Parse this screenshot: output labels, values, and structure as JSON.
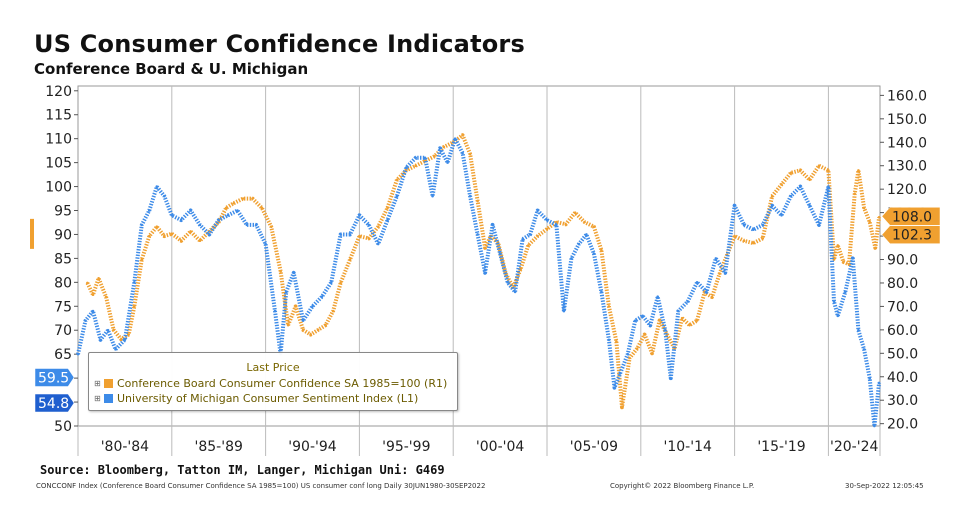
{
  "header": {
    "title": "US Consumer Confidence Indicators",
    "subtitle": "Conference Board & U. Michigan"
  },
  "legend": {
    "title": "Last Price",
    "entries": [
      {
        "label": "Conference Board Consumer Confidence SA 1985=100  (R1)",
        "color": "#f0a030"
      },
      {
        "label": "University of Michigan Consumer Sentiment Index  (L1)",
        "color": "#3d8be8"
      }
    ]
  },
  "footer": {
    "source": "Source: Bloomberg, Tatton IM, Langer, Michigan Uni: G469",
    "left": "CONCCONF Index (Conference Board Consumer Confidence SA 1985=100) US consumer conf long  Daily 30JUN1980-30SEP2022",
    "middle": "Copyright© 2022 Bloomberg Finance L.P.",
    "right": "30-Sep-2022 12:05:45"
  },
  "chart_data": {
    "type": "line",
    "title": "US Consumer Confidence Indicators",
    "subtitle": "Conference Board & U. Michigan",
    "x_labels": [
      "'80-'84",
      "'85-'89",
      "'90-'94",
      "'95-'99",
      "'00-'04",
      "'05-'09",
      "'10-'14",
      "'15-'19",
      "'20-'24"
    ],
    "x_range": [
      1980,
      2022.75
    ],
    "left_axis": {
      "range": [
        50,
        121
      ],
      "ticks": [
        50,
        55,
        60,
        65,
        70,
        75,
        80,
        85,
        90,
        95,
        100,
        105,
        110,
        115,
        120
      ]
    },
    "right_axis": {
      "range": [
        19,
        164
      ],
      "ticks": [
        "20.0",
        "30.0",
        "40.0",
        "50.0",
        "60.0",
        "70.0",
        "80.0",
        "90.0",
        "100.0",
        "110.0",
        "120.0",
        "130.0",
        "140.0",
        "150.0",
        "160.0"
      ]
    },
    "last_price_labels": [
      {
        "text": "59.5",
        "axis": "left",
        "color": "#3d8be8"
      },
      {
        "text": "54.8",
        "axis": "left",
        "color": "#1f5fcf"
      },
      {
        "text": "108.0",
        "axis": "right",
        "color": "#f0a030"
      },
      {
        "text": "102.3",
        "axis": "right",
        "color": "#f0a030"
      }
    ],
    "series": [
      {
        "name": "Conference Board Consumer Confidence SA 1985=100  (R1)",
        "axis": "right",
        "color": "#f0a030",
        "x": [
          1980.5,
          1980.8,
          1981.1,
          1981.5,
          1981.9,
          1982.3,
          1982.7,
          1983.0,
          1983.4,
          1983.8,
          1984.2,
          1984.6,
          1985.0,
          1985.5,
          1986.0,
          1986.5,
          1987.0,
          1987.5,
          1987.9,
          1988.3,
          1988.8,
          1989.3,
          1989.8,
          1990.3,
          1990.8,
          1991.2,
          1991.6,
          1992.0,
          1992.4,
          1992.8,
          1993.2,
          1993.6,
          1994.0,
          1994.5,
          1995.0,
          1995.5,
          1996.0,
          1996.5,
          1997.0,
          1997.5,
          1998.0,
          1998.5,
          1999.0,
          1999.5,
          2000.0,
          2000.5,
          2000.9,
          2001.3,
          2001.7,
          2002.0,
          2002.4,
          2002.8,
          2003.2,
          2003.6,
          2004.0,
          2004.5,
          2005.0,
          2005.5,
          2006.0,
          2006.5,
          2007.0,
          2007.5,
          2007.9,
          2008.3,
          2008.7,
          2009.0,
          2009.4,
          2009.8,
          2010.2,
          2010.6,
          2011.0,
          2011.4,
          2011.8,
          2012.2,
          2012.6,
          2013.0,
          2013.4,
          2013.8,
          2014.2,
          2014.6,
          2015.0,
          2015.5,
          2016.0,
          2016.5,
          2017.0,
          2017.5,
          2018.0,
          2018.5,
          2019.0,
          2019.5,
          2020.0,
          2020.3,
          2020.5,
          2020.8,
          2021.1,
          2021.4,
          2021.6,
          2021.9,
          2022.2,
          2022.5,
          2022.7
        ],
        "values": [
          80,
          75,
          82,
          74,
          60,
          56,
          58,
          70,
          90,
          100,
          104,
          100,
          101,
          98,
          102,
          98,
          102,
          106,
          112,
          114,
          116,
          116,
          112,
          104,
          85,
          62,
          70,
          60,
          58,
          60,
          62,
          68,
          80,
          90,
          100,
          99,
          104,
          112,
          124,
          128,
          130,
          132,
          134,
          138,
          140,
          143,
          135,
          115,
          95,
          100,
          97,
          84,
          78,
          86,
          96,
          100,
          103,
          106,
          105,
          110,
          106,
          104,
          94,
          70,
          55,
          27,
          48,
          52,
          58,
          50,
          64,
          58,
          52,
          65,
          62,
          64,
          76,
          74,
          84,
          92,
          100,
          98,
          97,
          99,
          117,
          122,
          127,
          128,
          124,
          130,
          128,
          90,
          96,
          89,
          88,
          118,
          128,
          112,
          106,
          95,
          108
        ]
      },
      {
        "name": "University of Michigan Consumer Sentiment Index  (L1)",
        "axis": "left",
        "color": "#3d8be8",
        "x": [
          1980.0,
          1980.4,
          1980.8,
          1981.2,
          1981.6,
          1982.0,
          1982.5,
          1983.0,
          1983.4,
          1983.8,
          1984.2,
          1984.6,
          1985.0,
          1985.5,
          1986.0,
          1986.5,
          1987.0,
          1987.5,
          1988.0,
          1988.5,
          1989.0,
          1989.5,
          1990.0,
          1990.5,
          1990.8,
          1991.1,
          1991.5,
          1992.0,
          1992.5,
          1993.0,
          1993.5,
          1994.0,
          1994.5,
          1995.0,
          1995.5,
          1996.0,
          1996.5,
          1997.0,
          1997.5,
          1998.0,
          1998.5,
          1998.9,
          1999.3,
          1999.7,
          2000.1,
          2000.5,
          2000.9,
          2001.3,
          2001.7,
          2002.1,
          2002.5,
          2002.9,
          2003.3,
          2003.7,
          2004.1,
          2004.5,
          2005.0,
          2005.5,
          2005.9,
          2006.3,
          2006.7,
          2007.1,
          2007.5,
          2007.9,
          2008.3,
          2008.6,
          2008.9,
          2009.3,
          2009.7,
          2010.1,
          2010.5,
          2010.9,
          2011.3,
          2011.6,
          2012.0,
          2012.5,
          2013.0,
          2013.5,
          2014.0,
          2014.5,
          2015.0,
          2015.5,
          2016.0,
          2016.5,
          2017.0,
          2017.5,
          2018.0,
          2018.5,
          2019.0,
          2019.5,
          2020.0,
          2020.3,
          2020.5,
          2020.9,
          2021.3,
          2021.6,
          2021.9,
          2022.2,
          2022.45,
          2022.7
        ],
        "values": [
          65,
          72,
          74,
          68,
          70,
          66,
          68,
          80,
          92,
          95,
          100,
          98,
          94,
          93,
          95,
          92,
          90,
          93,
          94,
          95,
          92,
          92,
          88,
          74,
          65,
          78,
          82,
          72,
          75,
          77,
          80,
          90,
          90,
          94,
          92,
          88,
          93,
          98,
          104,
          106,
          106,
          98,
          108,
          105,
          110,
          107,
          98,
          90,
          82,
          92,
          86,
          80,
          78,
          89,
          90,
          95,
          93,
          92,
          74,
          85,
          88,
          90,
          86,
          78,
          68,
          58,
          61,
          65,
          72,
          73,
          71,
          77,
          70,
          60,
          74,
          76,
          80,
          78,
          85,
          82,
          96,
          92,
          91,
          92,
          96,
          94,
          98,
          100,
          96,
          92,
          100,
          76,
          73,
          78,
          85,
          70,
          66,
          60,
          50,
          59
        ]
      }
    ]
  }
}
